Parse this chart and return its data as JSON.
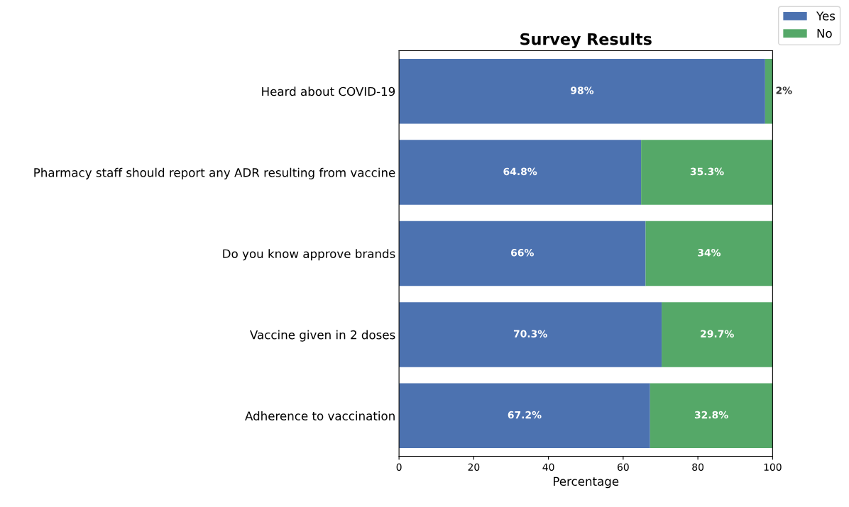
{
  "chart_data": {
    "type": "bar",
    "orientation": "horizontal",
    "stacked": true,
    "title": "Survey Results",
    "xlabel": "Percentage",
    "categories": [
      "Heard about COVID-19",
      "Pharmacy staff should report any ADR resulting from vaccine",
      "Do you know approve brands",
      "Vaccine given in 2 doses",
      "Adherence to vaccination"
    ],
    "series": [
      {
        "name": "Yes",
        "color": "#4c72b0",
        "values": [
          98,
          64.8,
          66,
          70.3,
          67.2
        ],
        "value_labels": [
          "98%",
          "64.8%",
          "66%",
          "70.3%",
          "67.2%"
        ]
      },
      {
        "name": "No",
        "color": "#55a868",
        "values": [
          2,
          35.3,
          34,
          29.7,
          32.8
        ],
        "value_labels": [
          "2%",
          "35.3%",
          "34%",
          "29.7%",
          "32.8%"
        ]
      }
    ],
    "xlim": [
      0,
      100
    ],
    "xticks": [
      0,
      20,
      40,
      60,
      80,
      100
    ],
    "legend": "top right",
    "grid": false
  }
}
